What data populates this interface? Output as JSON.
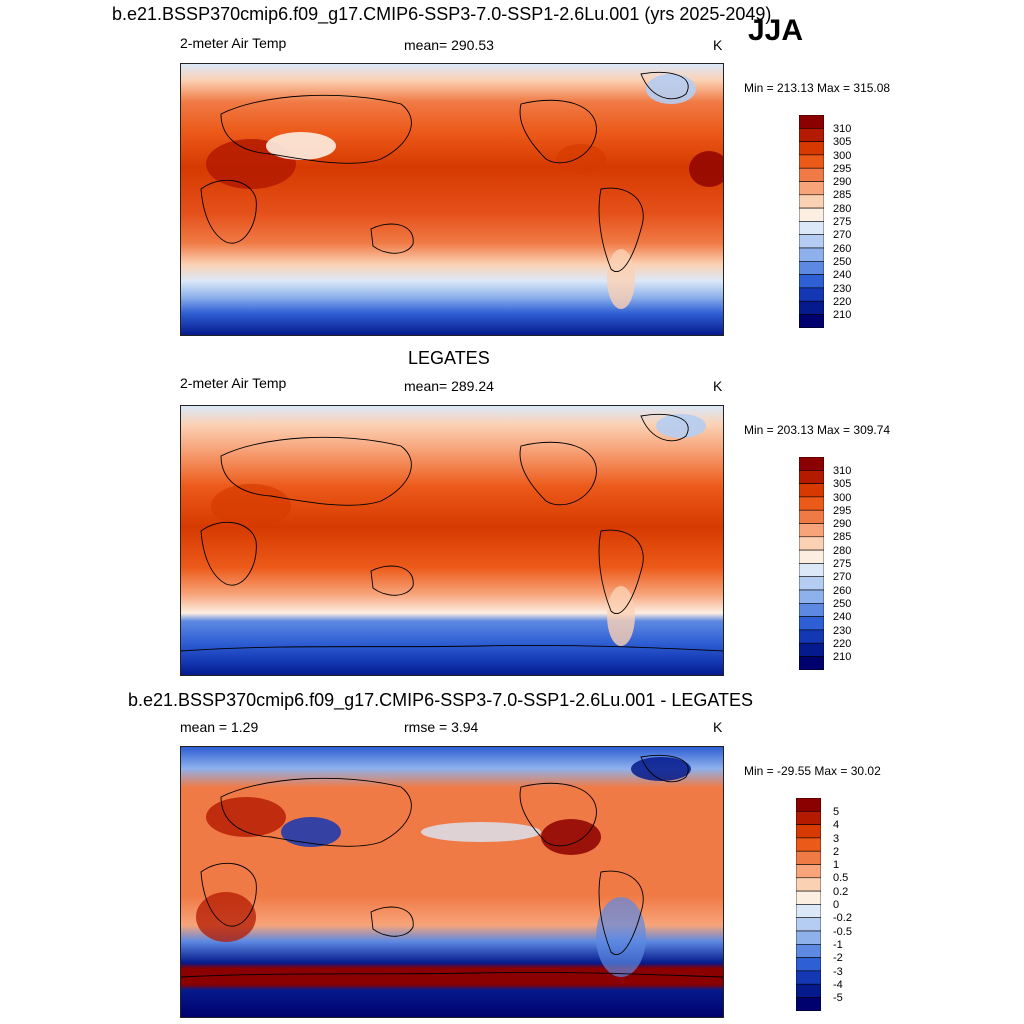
{
  "season": "JJA",
  "panels": [
    {
      "title": "b.e21.BSSP370cmip6.f09_g17.CMIP6-SSP3-7.0-SSP1-2.6Lu.001 (yrs 2025-2049)",
      "left_label": "2-meter Air Temp",
      "center_label": "mean= 290.53",
      "units": "K",
      "minmax": "Min = 213.13 Max = 315.08",
      "colorbar_ticks": [
        "310",
        "305",
        "300",
        "295",
        "290",
        "285",
        "280",
        "275",
        "270",
        "260",
        "250",
        "240",
        "230",
        "220",
        "210"
      ]
    },
    {
      "title": "LEGATES",
      "left_label": "2-meter Air Temp",
      "center_label": "mean= 289.24",
      "units": "K",
      "minmax": "Min = 203.13 Max = 309.74",
      "colorbar_ticks": [
        "310",
        "305",
        "300",
        "295",
        "290",
        "285",
        "280",
        "275",
        "270",
        "260",
        "250",
        "240",
        "230",
        "220",
        "210"
      ]
    },
    {
      "title": "b.e21.BSSP370cmip6.f09_g17.CMIP6-SSP3-7.0-SSP1-2.6Lu.001 - LEGATES",
      "left_label": "mean =   1.29",
      "center_label": "rmse =   3.94",
      "units": "K",
      "minmax": "Min = -29.55 Max =  30.02",
      "colorbar_ticks": [
        "5",
        "4",
        "3",
        "2",
        "1",
        "0.5",
        "0.2",
        "0",
        "-0.2",
        "-0.5",
        "-1",
        "-2",
        "-3",
        "-4",
        "-5"
      ]
    }
  ],
  "colors": {
    "temp_scale": [
      "#8b0000",
      "#b31a00",
      "#d63a00",
      "#ec5a1a",
      "#f07a45",
      "#f7a47a",
      "#fbd1b4",
      "#fdeee2",
      "#dbe8f8",
      "#b5cdf2",
      "#8eb1ec",
      "#5d89e2",
      "#2f5fd4",
      "#1438b4",
      "#051a8c",
      "#00006e"
    ],
    "diff_scale": [
      "#8b0000",
      "#b31a00",
      "#d63a00",
      "#ec5a1a",
      "#f07a45",
      "#f7a47a",
      "#fbd1b4",
      "#fdeee2",
      "#dbe8f8",
      "#b5cdf2",
      "#8eb1ec",
      "#5d89e2",
      "#2f5fd4",
      "#1438b4",
      "#051a8c",
      "#00006e"
    ]
  }
}
